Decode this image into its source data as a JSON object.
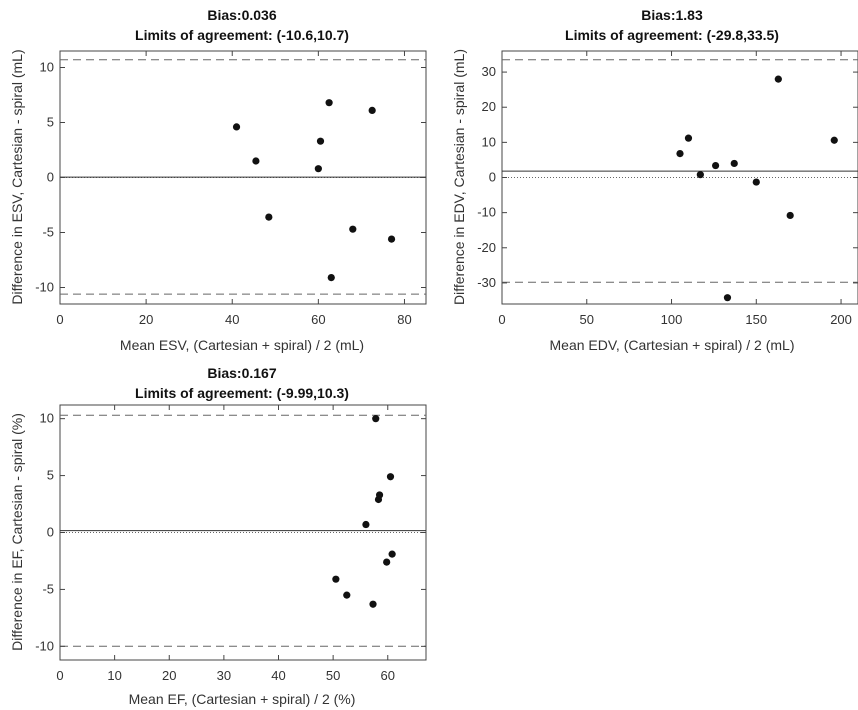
{
  "chart_data": [
    {
      "type": "scatter",
      "title": "Bias:0.036",
      "subtitle": "Limits of agreement: (-10.6,10.7)",
      "xlabel": "Mean ESV, (Cartesian + spiral) / 2 (mL)",
      "ylabel": "Difference in ESV, Cartesian - spiral (mL)",
      "xlim": [
        0,
        85
      ],
      "ylim": [
        -11.5,
        11.5
      ],
      "xticks": [
        0,
        20,
        40,
        60,
        80
      ],
      "yticks": [
        -10,
        -5,
        0,
        5,
        10
      ],
      "bias": 0.036,
      "loa": [
        -10.6,
        10.7
      ],
      "zero_line": 0,
      "x": [
        41.0,
        45.5,
        48.5,
        60.0,
        60.5,
        62.5,
        63.0,
        68.0,
        72.5,
        77.0
      ],
      "y": [
        4.6,
        1.5,
        -3.6,
        0.8,
        3.3,
        6.8,
        -9.1,
        -4.7,
        6.1,
        -5.6
      ]
    },
    {
      "type": "scatter",
      "title": "Bias:1.83",
      "subtitle": "Limits of agreement: (-29.8,33.5)",
      "xlabel": "Mean EDV, (Cartesian + spiral) / 2 (mL)",
      "ylabel": "Difference in EDV, Cartesian - spiral (mL)",
      "xlim": [
        0,
        210
      ],
      "ylim": [
        -36,
        36
      ],
      "xticks": [
        0,
        50,
        100,
        150,
        200
      ],
      "yticks": [
        -30,
        -20,
        -10,
        0,
        10,
        20,
        30
      ],
      "bias": 1.83,
      "loa": [
        -29.8,
        33.5
      ],
      "zero_line": 0,
      "x": [
        105,
        110,
        117,
        126,
        133,
        137,
        150,
        163,
        170,
        196
      ],
      "y": [
        6.8,
        11.2,
        0.8,
        3.4,
        -34.2,
        4.0,
        -1.3,
        28.0,
        -10.8,
        10.6
      ]
    },
    {
      "type": "scatter",
      "title": "Bias:0.167",
      "subtitle": "Limits of agreement: (-9.99,10.3)",
      "xlabel": "Mean EF, (Cartesian + spiral) / 2 (%)",
      "ylabel": "Difference in EF, Cartesian - spiral (%)",
      "xlim": [
        0,
        67
      ],
      "ylim": [
        -11.2,
        11.2
      ],
      "xticks": [
        0,
        10,
        20,
        30,
        40,
        50,
        60
      ],
      "yticks": [
        -10,
        -5,
        0,
        5,
        10
      ],
      "bias": 0.167,
      "loa": [
        -9.99,
        10.3
      ],
      "zero_line": 0,
      "x": [
        50.5,
        52.5,
        56.0,
        57.3,
        57.8,
        58.3,
        58.5,
        59.8,
        60.5,
        60.8
      ],
      "y": [
        -4.1,
        -5.5,
        0.7,
        -6.3,
        10.0,
        2.9,
        3.3,
        -2.6,
        4.9,
        -1.9
      ]
    }
  ]
}
